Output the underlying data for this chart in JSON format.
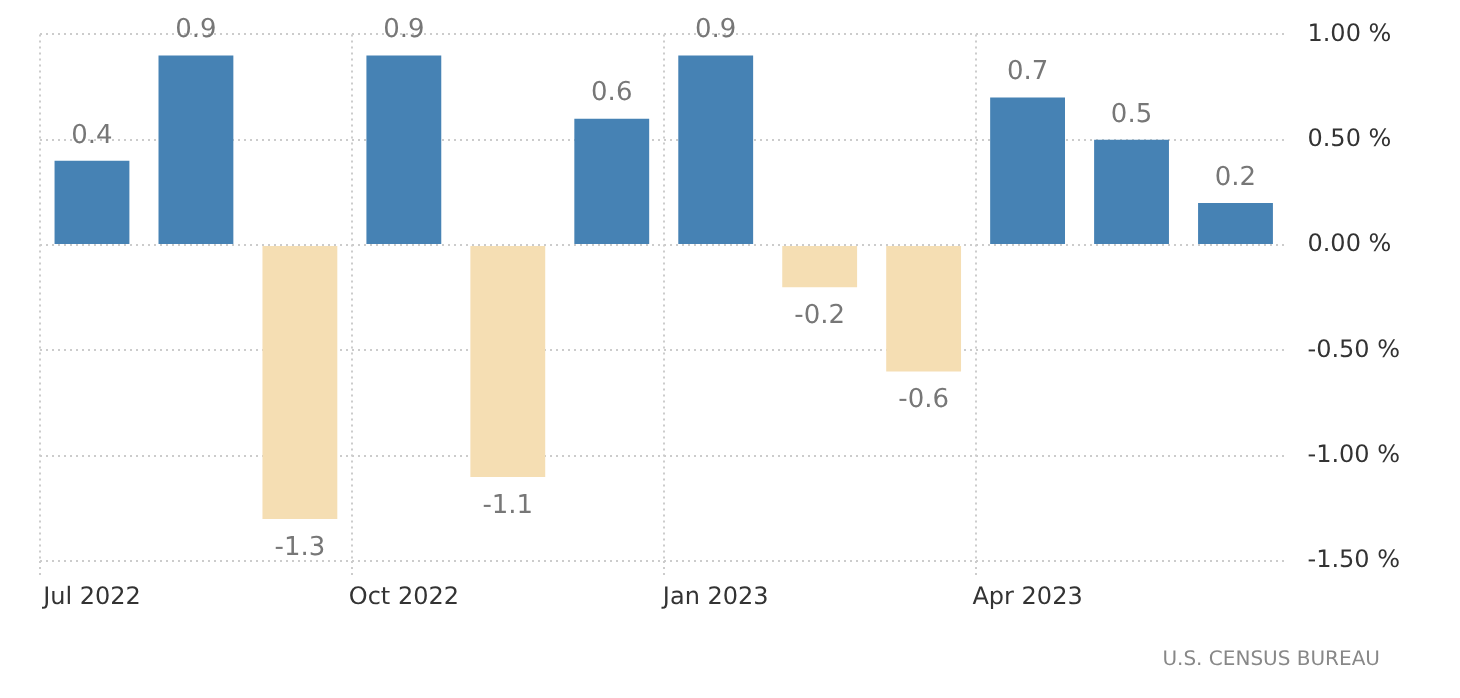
{
  "chart_data": {
    "type": "bar",
    "categories": [
      "Jul 2022",
      null,
      null,
      "Oct 2022",
      null,
      null,
      "Jan 2023",
      null,
      null,
      "Apr 2023",
      null,
      null
    ],
    "values": [
      0.4,
      0.9,
      -1.3,
      0.9,
      -1.1,
      0.6,
      0.9,
      -0.2,
      -0.6,
      0.7,
      0.5,
      0.2
    ],
    "colors": [
      "#4682b4",
      "#4682b4",
      "#f5deb3",
      "#4682b4",
      "#f5deb3",
      "#4682b4",
      "#4682b4",
      "#f5deb3",
      "#f5deb3",
      "#4682b4",
      "#4682b4",
      "#4682b4"
    ],
    "ylim": [
      -1.5,
      1.0
    ],
    "yticks": [
      {
        "value": -1.5,
        "label": "-1.50 %"
      },
      {
        "value": -1.0,
        "label": "-1.00 %"
      },
      {
        "value": -0.5,
        "label": "-0.50 %"
      },
      {
        "value": 0,
        "label": "0.00 %"
      },
      {
        "value": 0.5,
        "label": "0.50 %"
      },
      {
        "value": 1.0,
        "label": "1.00 %"
      }
    ],
    "grid": true,
    "data_labels": true,
    "annotations": [
      "U.S. CENSUS BUREAU"
    ]
  }
}
